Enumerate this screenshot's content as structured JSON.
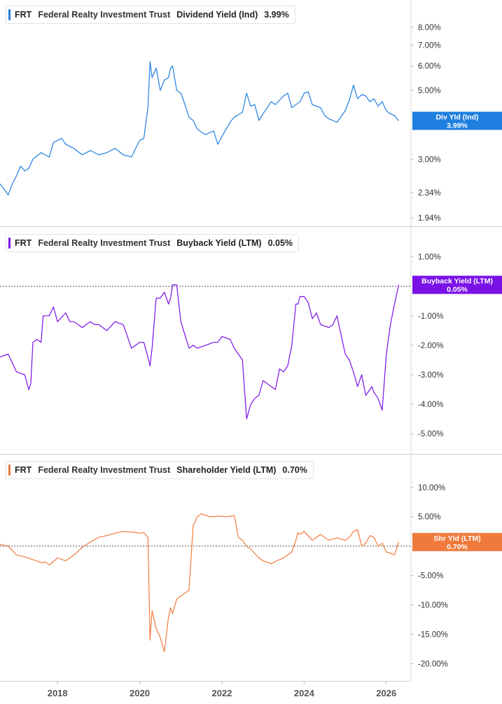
{
  "ticker": "FRT",
  "company": "Federal Realty Investment Trust",
  "panels": [
    {
      "metric": "Dividend Yield (Ind)",
      "value": "3.99%",
      "color": "#1f7fe0",
      "tag_label": "Div Yld (Ind)",
      "tag_value": "3.99%"
    },
    {
      "metric": "Buyback Yield (LTM)",
      "value": "0.05%",
      "color": "#7a12e8",
      "tag_label": "Buyback Yield (LTM)",
      "tag_value": "0.05%"
    },
    {
      "metric": "Shareholder Yield (LTM)",
      "value": "0.70%",
      "color": "#f07a3c",
      "tag_label": "Shr Yld (LTM)",
      "tag_value": "0.70%"
    }
  ],
  "chart_data": [
    {
      "type": "line",
      "title": "FRT Federal Realty Investment Trust Dividend Yield (Ind) 3.99%",
      "scale": "log",
      "ylim": [
        1.94,
        9.2
      ],
      "y_ticks": [
        {
          "value": 8.0,
          "label": "8.00%"
        },
        {
          "value": 7.0,
          "label": "7.00%"
        },
        {
          "value": 6.0,
          "label": "6.00%"
        },
        {
          "value": 5.0,
          "label": "5.00%"
        },
        {
          "value": 3.0,
          "label": "3.00%"
        },
        {
          "value": 2.34,
          "label": "2.34%"
        },
        {
          "value": 1.94,
          "label": "1.94%"
        }
      ],
      "reference_line": null,
      "series": [
        {
          "x": [
            2016.6,
            2016.7,
            2016.8,
            2016.9,
            2017.0,
            2017.1,
            2017.2,
            2017.3,
            2017.4,
            2017.6,
            2017.8,
            2017.9,
            2018.0,
            2018.1,
            2018.2,
            2018.4,
            2018.6,
            2018.8,
            2019.0,
            2019.2,
            2019.4,
            2019.6,
            2019.8,
            2019.9,
            2020.0,
            2020.1,
            2020.2,
            2020.25,
            2020.3,
            2020.4,
            2020.5,
            2020.6,
            2020.7,
            2020.75,
            2020.8,
            2020.9,
            2021.0,
            2021.1,
            2021.2,
            2021.3,
            2021.4,
            2021.6,
            2021.8,
            2021.9,
            2022.0,
            2022.1,
            2022.2,
            2022.3,
            2022.5,
            2022.6,
            2022.7,
            2022.8,
            2022.9,
            2023.0,
            2023.2,
            2023.3,
            2023.5,
            2023.6,
            2023.7,
            2023.9,
            2024.0,
            2024.1,
            2024.2,
            2024.4,
            2024.5,
            2024.6,
            2024.7,
            2024.8,
            2025.0,
            2025.1,
            2025.2,
            2025.3,
            2025.4,
            2025.5,
            2025.6,
            2025.7,
            2025.8,
            2025.9,
            2026.0,
            2026.1,
            2026.2,
            2026.3
          ],
          "y": [
            2.5,
            2.4,
            2.3,
            2.5,
            2.65,
            2.85,
            2.75,
            2.8,
            3.0,
            3.15,
            3.05,
            3.4,
            3.45,
            3.5,
            3.35,
            3.25,
            3.1,
            3.2,
            3.1,
            3.15,
            3.25,
            3.1,
            3.05,
            3.25,
            3.45,
            3.5,
            4.4,
            6.2,
            5.5,
            5.9,
            5.0,
            5.4,
            5.5,
            5.9,
            6.0,
            5.0,
            4.9,
            4.5,
            4.1,
            4.0,
            3.75,
            3.6,
            3.7,
            3.35,
            3.55,
            3.75,
            3.95,
            4.1,
            4.25,
            4.9,
            4.45,
            4.5,
            4.0,
            4.2,
            4.6,
            4.5,
            4.8,
            4.9,
            4.4,
            4.6,
            4.9,
            4.95,
            4.5,
            4.4,
            4.15,
            4.05,
            4.0,
            3.95,
            4.3,
            4.65,
            5.2,
            4.7,
            4.85,
            4.8,
            4.6,
            4.7,
            4.45,
            4.6,
            4.3,
            4.2,
            4.15,
            3.99
          ]
        }
      ]
    },
    {
      "type": "line",
      "title": "FRT Federal Realty Investment Trust Buyback Yield (LTM) 0.05%",
      "scale": "linear",
      "ylim": [
        -5.4,
        1.3
      ],
      "y_ticks": [
        {
          "value": 1.0,
          "label": "1.00%"
        },
        {
          "value": -1.0,
          "label": "-1.00%"
        },
        {
          "value": -2.0,
          "label": "-2.00%"
        },
        {
          "value": -3.0,
          "label": "-3.00%"
        },
        {
          "value": -4.0,
          "label": "-4.00%"
        },
        {
          "value": -5.0,
          "label": "-5.00%"
        }
      ],
      "reference_line": 0.0,
      "series": [
        {
          "x": [
            2016.6,
            2016.8,
            2016.9,
            2017.0,
            2017.2,
            2017.3,
            2017.35,
            2017.4,
            2017.5,
            2017.6,
            2017.65,
            2017.8,
            2017.9,
            2018.0,
            2018.2,
            2018.3,
            2018.4,
            2018.6,
            2018.8,
            2018.9,
            2019.0,
            2019.2,
            2019.4,
            2019.6,
            2019.8,
            2019.9,
            2020.0,
            2020.1,
            2020.2,
            2020.25,
            2020.3,
            2020.4,
            2020.5,
            2020.6,
            2020.7,
            2020.75,
            2020.8,
            2020.9,
            2021.0,
            2021.2,
            2021.3,
            2021.4,
            2021.6,
            2021.8,
            2021.9,
            2022.0,
            2022.2,
            2022.3,
            2022.5,
            2022.6,
            2022.7,
            2022.8,
            2022.9,
            2023.0,
            2023.2,
            2023.3,
            2023.4,
            2023.5,
            2023.6,
            2023.7,
            2023.8,
            2023.85,
            2023.9,
            2024.0,
            2024.1,
            2024.2,
            2024.3,
            2024.4,
            2024.6,
            2024.7,
            2024.8,
            2025.0,
            2025.1,
            2025.2,
            2025.3,
            2025.4,
            2025.5,
            2025.6,
            2025.65,
            2025.7,
            2025.8,
            2025.9,
            2026.0,
            2026.1,
            2026.2,
            2026.3
          ],
          "y": [
            -2.4,
            -2.3,
            -2.6,
            -2.9,
            -3.0,
            -3.5,
            -3.3,
            -1.9,
            -1.8,
            -1.9,
            -1.0,
            -1.0,
            -0.7,
            -1.2,
            -0.9,
            -1.2,
            -1.2,
            -1.4,
            -1.2,
            -1.3,
            -1.3,
            -1.5,
            -1.2,
            -1.3,
            -2.1,
            -2.0,
            -1.9,
            -1.9,
            -2.4,
            -2.7,
            -2.1,
            -0.4,
            -0.4,
            -0.2,
            -0.6,
            -0.4,
            0.05,
            0.05,
            -1.2,
            -2.1,
            -2.0,
            -2.1,
            -2.0,
            -1.9,
            -1.9,
            -1.7,
            -1.8,
            -2.1,
            -2.5,
            -4.5,
            -4.0,
            -3.8,
            -3.7,
            -3.2,
            -3.4,
            -3.5,
            -2.8,
            -2.9,
            -2.7,
            -2.0,
            -0.6,
            -0.6,
            -0.35,
            -0.35,
            -0.55,
            -1.1,
            -0.9,
            -1.3,
            -1.4,
            -1.3,
            -1.0,
            -2.3,
            -2.5,
            -2.9,
            -3.4,
            -3.0,
            -3.7,
            -3.5,
            -3.4,
            -3.6,
            -3.8,
            -4.2,
            -2.3,
            -1.3,
            -0.6,
            0.05
          ]
        }
      ]
    },
    {
      "type": "line",
      "title": "FRT Federal Realty Investment Trust Shareholder Yield (LTM) 0.70%",
      "scale": "linear",
      "ylim": [
        -21.5,
        12.0
      ],
      "y_ticks": [
        {
          "value": 10.0,
          "label": "10.00%"
        },
        {
          "value": 5.0,
          "label": "5.00%"
        },
        {
          "value": -5.0,
          "label": "-5.00%"
        },
        {
          "value": -10.0,
          "label": "-10.00%"
        },
        {
          "value": -15.0,
          "label": "-15.00%"
        },
        {
          "value": -20.0,
          "label": "-20.00%"
        }
      ],
      "reference_line": 0.0,
      "series": [
        {
          "x": [
            2016.6,
            2016.8,
            2017.0,
            2017.2,
            2017.4,
            2017.6,
            2017.7,
            2017.8,
            2018.0,
            2018.2,
            2018.4,
            2018.6,
            2018.8,
            2019.0,
            2019.2,
            2019.4,
            2019.6,
            2019.8,
            2020.0,
            2020.1,
            2020.2,
            2020.25,
            2020.3,
            2020.4,
            2020.5,
            2020.6,
            2020.7,
            2020.75,
            2020.8,
            2020.9,
            2021.0,
            2021.2,
            2021.3,
            2021.4,
            2021.5,
            2021.7,
            2021.9,
            2022.1,
            2022.3,
            2022.4,
            2022.5,
            2022.6,
            2022.7,
            2022.9,
            2023.0,
            2023.2,
            2023.3,
            2023.5,
            2023.7,
            2023.8,
            2023.85,
            2023.9,
            2024.0,
            2024.2,
            2024.3,
            2024.4,
            2024.6,
            2024.8,
            2025.0,
            2025.1,
            2025.2,
            2025.3,
            2025.4,
            2025.5,
            2025.6,
            2025.7,
            2025.8,
            2025.9,
            2026.0,
            2026.1,
            2026.2,
            2026.3
          ],
          "y": [
            0.3,
            0.0,
            -1.5,
            -1.8,
            -2.3,
            -2.8,
            -2.7,
            -3.2,
            -2.0,
            -2.5,
            -1.5,
            -0.2,
            0.7,
            1.5,
            1.8,
            2.2,
            2.5,
            2.4,
            2.2,
            2.3,
            1.5,
            -16.0,
            -11.0,
            -14.0,
            -15.5,
            -18.0,
            -12.0,
            -10.5,
            -11.5,
            -9.0,
            -8.5,
            -7.5,
            3.5,
            5.0,
            5.5,
            5.0,
            5.1,
            5.0,
            5.2,
            1.5,
            1.0,
            0.0,
            -0.5,
            -2.0,
            -2.5,
            -3.0,
            -2.6,
            -2.0,
            -1.0,
            1.0,
            2.3,
            2.0,
            2.5,
            1.0,
            1.5,
            2.0,
            1.0,
            1.4,
            1.0,
            1.5,
            2.5,
            2.8,
            0.0,
            0.5,
            1.8,
            1.5,
            0.0,
            0.5,
            -1.0,
            -1.2,
            -1.5,
            0.7
          ]
        }
      ]
    }
  ],
  "x_axis": {
    "ticks": [
      {
        "value": 2018,
        "label": "2018"
      },
      {
        "value": 2020,
        "label": "2020"
      },
      {
        "value": 2022,
        "label": "2022"
      },
      {
        "value": 2024,
        "label": "2024"
      },
      {
        "value": 2026,
        "label": "2026"
      }
    ]
  }
}
